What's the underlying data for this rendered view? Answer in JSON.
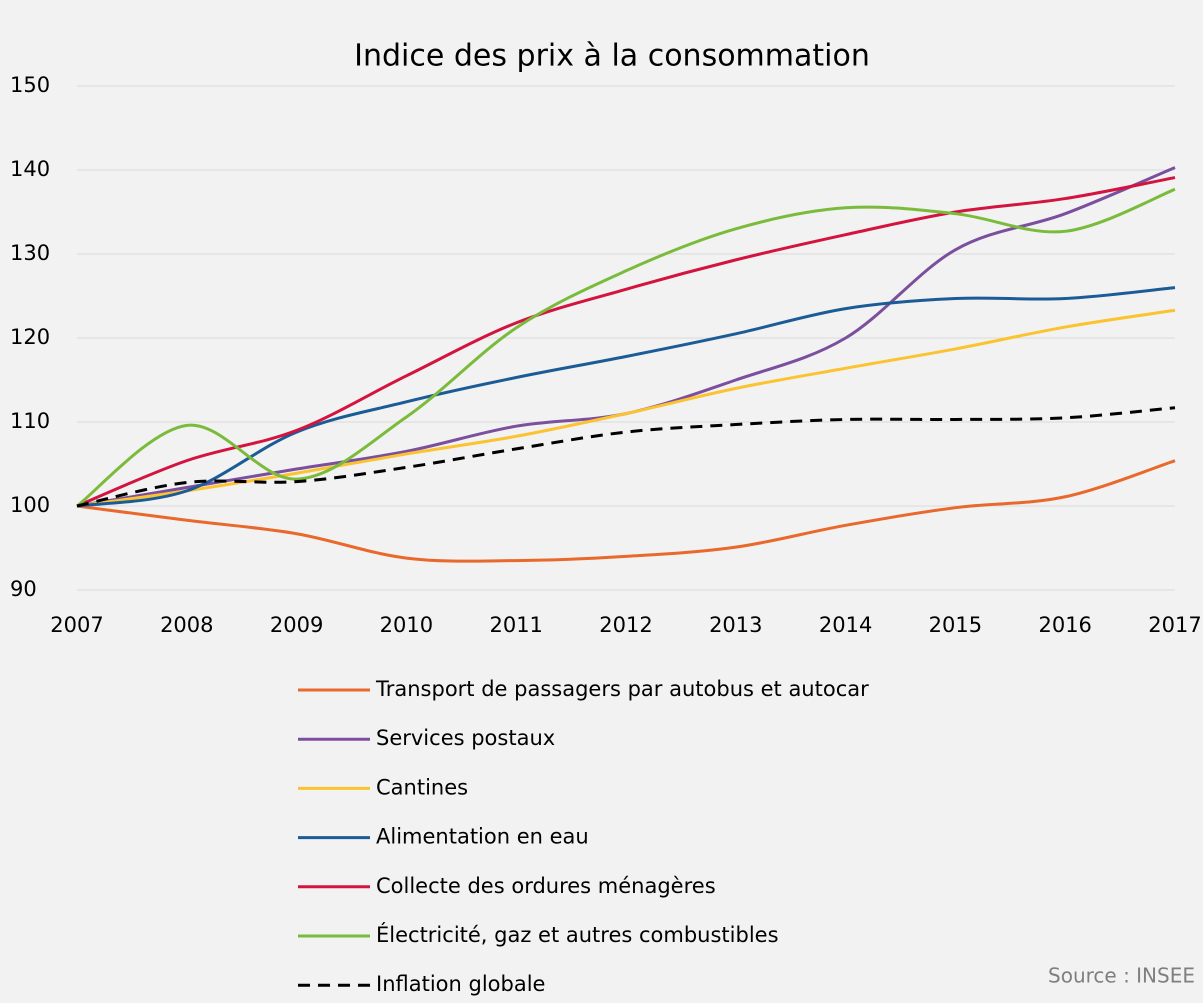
{
  "chart_data": {
    "type": "line",
    "title": "Indice des prix à la consommation",
    "source": "Source : INSEE",
    "x": [
      2007,
      2008,
      2009,
      2010,
      2011,
      2012,
      2013,
      2014,
      2015,
      2016,
      2017
    ],
    "xlim": [
      2007,
      2017
    ],
    "xticks": [
      2007,
      2008,
      2009,
      2010,
      2011,
      2012,
      2013,
      2014,
      2015,
      2016,
      2017
    ],
    "ylim": [
      90,
      150
    ],
    "yticks": [
      90,
      100,
      110,
      120,
      130,
      140,
      150
    ],
    "grid": true,
    "series": [
      {
        "name": "Transport de passagers par autobus et autocar",
        "color": "#e8692b",
        "values": [
          100,
          98.3,
          96.7,
          93.8,
          93.5,
          94.0,
          95.1,
          97.7,
          99.8,
          101.1,
          105.4
        ]
      },
      {
        "name": "Services postaux",
        "color": "#7b4f9e",
        "values": [
          100,
          102.2,
          104.4,
          106.5,
          109.5,
          111.0,
          115.0,
          120.0,
          130.5,
          134.8,
          140.3
        ]
      },
      {
        "name": "Cantines",
        "color": "#fcc331",
        "values": [
          100,
          101.8,
          103.9,
          106.2,
          108.3,
          111.0,
          114.0,
          116.4,
          118.7,
          121.3,
          123.3
        ]
      },
      {
        "name": "Alimentation en eau",
        "color": "#1b5c96",
        "values": [
          100,
          101.8,
          108.8,
          112.4,
          115.3,
          117.8,
          120.5,
          123.5,
          124.7,
          124.7,
          126.0
        ]
      },
      {
        "name": "Collecte des ordures ménagères",
        "color": "#d3143f",
        "values": [
          100,
          105.4,
          109.0,
          115.5,
          121.8,
          125.8,
          129.3,
          132.3,
          135.0,
          136.6,
          139.1
        ]
      },
      {
        "name": "Électricité, gaz et autres combustibles",
        "color": "#7bbb3c",
        "values": [
          100,
          109.6,
          103.2,
          110.6,
          121.2,
          128.0,
          133.0,
          135.5,
          134.8,
          132.7,
          137.7
        ]
      },
      {
        "name": "Inflation globale",
        "color": "#000000",
        "dashed": true,
        "values": [
          100,
          102.8,
          102.9,
          104.6,
          106.8,
          108.8,
          109.7,
          110.3,
          110.3,
          110.5,
          111.7
        ]
      }
    ]
  }
}
